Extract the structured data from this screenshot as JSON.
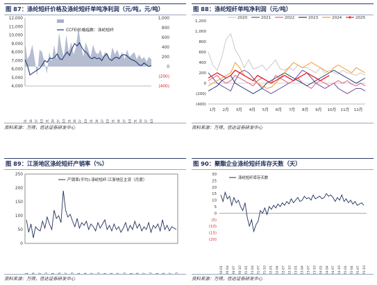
{
  "panels": [
    {
      "title": "图 87：涤纶短纤价格及涤纶短纤单吨净利润（元/吨，元/吨）",
      "source": "资料来源：万得，信达证券研发中心",
      "chart_data": {
        "type": "area+line",
        "title": "",
        "x_labels": [
          "2020-01",
          "2020-04",
          "2020-07",
          "2020-10",
          "2021-01",
          "2021-04",
          "2021-07",
          "2021-10",
          "2022-01",
          "2022-04",
          "2022-07",
          "2022-10",
          "2023-01",
          "2023-04",
          "2023-07",
          "2023-10",
          "2024-01",
          "2024-04",
          "2024-07",
          "2024-10",
          "2025-01",
          "2025-04",
          "2025-07",
          "2025-10"
        ],
        "yleft_ticks": [
          "12,000",
          "11,000",
          "10,000",
          "9,000",
          "8,000",
          "7,000",
          "6,000",
          "5,000",
          "4,000"
        ],
        "yleft_range": [
          4000,
          12000
        ],
        "yright_ticks": [
          "1,000",
          "800",
          "600",
          "400",
          "200",
          "0",
          "(200)",
          "(400)"
        ],
        "yright_range": [
          -400,
          1000
        ],
        "legend": [
          "涤纶短纤单吨净利润（右）",
          "CCFEI价格指数：涤纶短纤"
        ],
        "series": [
          {
            "name": "涤纶短纤单吨净利润（右）",
            "axis": "right",
            "color": "#a9b2c8",
            "values": [
              500,
              150,
              250,
              450,
              150,
              -200,
              350,
              300,
              100,
              -150,
              300,
              100,
              450,
              150,
              700,
              400,
              200,
              650,
              300,
              500,
              250,
              400,
              800,
              450,
              200,
              500,
              350,
              200,
              450,
              300,
              250,
              350,
              200,
              300,
              250,
              150,
              400,
              250,
              350,
              200,
              300,
              150,
              350,
              200,
              250,
              300,
              150,
              250,
              150,
              200,
              100,
              200,
              150
            ]
          },
          {
            "name": "CCFEI价格指数：涤纶短纤",
            "axis": "left",
            "color": "#1f3b7a",
            "values": [
              7100,
              6400,
              5300,
              5500,
              5700,
              5900,
              6100,
              6500,
              7000,
              6800,
              7300,
              7200,
              7400,
              7800,
              7200,
              7100,
              7600,
              8000,
              7600,
              8400,
              9000,
              8700,
              9100,
              8500,
              8100,
              7900,
              7400,
              7200,
              7400,
              7200,
              7300,
              7000,
              7500,
              7800,
              7200,
              7000,
              7300,
              7400,
              7200,
              7600,
              7700,
              7600,
              7300,
              7100,
              7000,
              6800,
              6500,
              6400,
              6700,
              6500,
              6300,
              6400
            ]
          }
        ]
      }
    },
    {
      "title": "图 88：涤纶短纤单吨净利润（元/吨）",
      "source": "资料来源：万得，信达证券研发中心",
      "chart_data": {
        "type": "line",
        "title": "",
        "x_labels": [
          "1月",
          "2月",
          "3月",
          "4月",
          "5月",
          "6月",
          "7月",
          "8月",
          "9月",
          "10月",
          "11月",
          "12月"
        ],
        "y_ticks": [
          "1,200",
          "1,000",
          "800",
          "600",
          "400",
          "200",
          "0",
          "(200)",
          "(400)"
        ],
        "y_range": [
          -400,
          1200
        ],
        "series": [
          {
            "name": "2020",
            "color": "#c8c8c8",
            "values": [
              600,
              350,
              250,
              500,
              850,
              950,
              650,
              500,
              300,
              450,
              280,
              300,
              350,
              250,
              350,
              450,
              280,
              250,
              300,
              250,
              350,
              300,
              300,
              250,
              200,
              300,
              200,
              250,
              200,
              180,
              250,
              200,
              180,
              150,
              200,
              150
            ]
          },
          {
            "name": "2021",
            "color": "#6a4aa0",
            "values": [
              200,
              100,
              0,
              -50,
              -100,
              -150,
              50,
              200,
              250,
              200,
              100,
              0,
              -100,
              -150,
              -200,
              -150,
              -100,
              -50,
              0,
              50,
              150,
              250,
              200,
              100,
              0,
              -50,
              -100,
              -50,
              0,
              -100,
              -150,
              -200,
              -150,
              -100,
              -100,
              -150
            ]
          },
          {
            "name": "2022",
            "color": "#e05a78",
            "values": [
              50,
              100,
              150,
              50,
              0,
              50,
              150,
              100,
              50,
              0,
              -50,
              50,
              100,
              50,
              0,
              150,
              100,
              50,
              0,
              50,
              100,
              0,
              -50,
              -100,
              0,
              50,
              0,
              -50,
              0,
              50,
              0,
              50,
              -20,
              -50,
              0,
              -50
            ]
          },
          {
            "name": "2023",
            "color": "#1f3b7a",
            "values": [
              -150,
              -100,
              -50,
              50,
              100,
              150,
              0,
              -50,
              -100,
              -150,
              -200,
              -150,
              -100,
              0,
              50,
              100,
              150,
              200,
              150,
              100,
              50,
              0,
              -50,
              0,
              50,
              100,
              150,
              200,
              250,
              200,
              150,
              100,
              50,
              0,
              50,
              100
            ]
          },
          {
            "name": "2024",
            "color": "#f29a2e",
            "values": [
              -50,
              0,
              50,
              100,
              150,
              200,
              400,
              300,
              150,
              100,
              50,
              0,
              -50,
              -100,
              -80,
              0,
              100,
              200,
              300,
              400,
              350,
              300,
              350,
              400,
              350,
              300,
              250,
              200,
              300,
              350,
              300,
              250,
              200,
              300,
              250,
              200
            ]
          },
          {
            "name": "2025",
            "color": "#e8262a",
            "values": [
              100,
              150,
              200,
              150,
              100,
              150,
              250,
              200,
              150,
              100,
              50,
              150,
              100,
              50,
              0,
              50,
              100,
              150,
              100,
              50,
              100,
              150,
              200,
              150,
              100,
              50,
              100,
              150
            ]
          }
        ]
      }
    },
    {
      "title": "图 89：江浙地区涤纶短纤产销率（%）",
      "source": "资料来源：万得，信达证券研发中心",
      "chart_data": {
        "type": "line",
        "title": "",
        "x_labels": [
          "2020-01",
          "2020-04",
          "2020-07",
          "2020-10",
          "2021-01",
          "2021-04",
          "2021-07",
          "2021-10",
          "2022-01",
          "2022-04",
          "2022-07",
          "2022-10",
          "2023-01",
          "2023-04",
          "2023-07",
          "2023-10",
          "2024-01",
          "2024-04",
          "2024-07",
          "2024-10",
          "2025-01",
          "2025-04",
          "2025-07",
          "2025-10"
        ],
        "y_ticks": [
          "250",
          "200",
          "150",
          "100",
          "50",
          "0"
        ],
        "y_range": [
          0,
          250
        ],
        "legend": [
          "产销率(平均):涤纶短纤:江浙地区主流（月度）"
        ],
        "series": [
          {
            "name": "产销率(平均):涤纶短纤:江浙地区主流（月度）",
            "color": "#1f2f5a",
            "values": [
              85,
              40,
              70,
              20,
              60,
              50,
              45,
              80,
              55,
              95,
              70,
              50,
              120,
              90,
              100,
              75,
              190,
              120,
              95,
              105,
              80,
              60,
              90,
              55,
              75,
              65,
              80,
              50,
              70,
              60,
              45,
              75,
              55,
              70,
              85,
              50,
              65,
              45,
              70,
              50,
              60,
              40,
              55,
              75,
              45,
              65,
              50,
              80,
              55,
              70,
              45,
              60,
              50,
              75,
              40,
              65,
              55,
              70,
              45,
              85,
              50,
              65,
              45,
              60,
              55,
              50
            ]
          }
        ]
      }
    },
    {
      "title": "图 90：聚酯企业涤纶短纤库存天数（天）",
      "source": "资料来源：万得，信达证券研发中心",
      "chart_data": {
        "type": "line",
        "title": "",
        "x_labels": [
          "2020-01",
          "2020-04",
          "2020-07",
          "2020-10",
          "2021-01",
          "2021-04",
          "2021-07",
          "2021-10",
          "2022-01",
          "2022-04",
          "2022-07",
          "2022-10",
          "2023-01",
          "2023-04",
          "2023-07",
          "2023-10",
          "2024-01",
          "2024-04",
          "2024-07",
          "2024-10",
          "2025-01",
          "2025-04",
          "2025-07",
          "2025-10"
        ],
        "y_ticks": [
          "30",
          "25",
          "20",
          "15",
          "10",
          "5",
          "0",
          "(5)",
          "(10)",
          "(15)",
          "(20)"
        ],
        "y_range": [
          -20,
          30
        ],
        "legend": [
          "涤纶短纤库存天数"
        ],
        "series": [
          {
            "name": "涤纶短纤库存天数",
            "color": "#1f2f5a",
            "values": [
              14,
              9,
              16,
              11,
              13,
              6,
              12,
              8,
              10,
              5,
              2,
              8,
              -3,
              -10,
              -5,
              -14,
              -9,
              -6,
              2,
              0,
              4,
              -1,
              5,
              3,
              6,
              4,
              7,
              5,
              8,
              6,
              9,
              7,
              11,
              8,
              10,
              12,
              9,
              10,
              13,
              11,
              12,
              10,
              14,
              11,
              12,
              13,
              11,
              12,
              15,
              13,
              14,
              12,
              9,
              12,
              10,
              14,
              9,
              11,
              8,
              10,
              7,
              9,
              6,
              7,
              8,
              6
            ]
          }
        ]
      }
    }
  ]
}
